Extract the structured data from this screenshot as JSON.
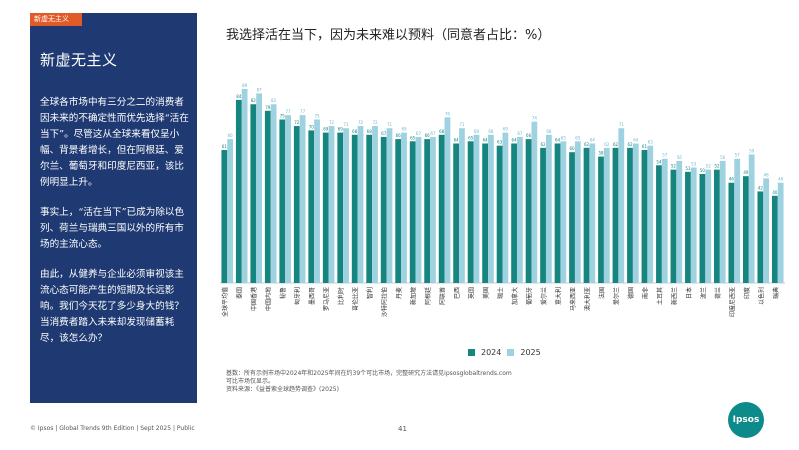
{
  "sidebar": {
    "tag": "新虚无主义",
    "title": "新虚无主义",
    "paragraphs": [
      "全球各市场中有三分之二的消费者因未来的不确定性而优先选择“活在当下”。尽管这从全球来看仅呈小幅、背景者增长，但在阿根廷、爱尔兰、葡萄牙和印度尼西亚，该比例明显上升。",
      "事实上，“活在当下”已成为除以色列、荷兰与瑞典三国以外的所有市场的主流心态。",
      "由此，从健养与企业必须审视该主流心态可能产生的短期及长远影响。我们今天花了多少身大的钱？当消费者踏入未来却发现储蓄耗尽，该怎么办？"
    ]
  },
  "chart_data": {
    "type": "bar",
    "title": "我选择活在当下，因为未来难以预料（同意者占比：%）",
    "categories": [
      "全球平均值",
      "泰国",
      "中国香港",
      "中国内地",
      "秘鲁",
      "匈牙利",
      "墨西哥",
      "罗马尼亚",
      "比利时",
      "哥伦比亚",
      "智利",
      "沙特阿拉伯",
      "丹麦",
      "新加坡",
      "阿根廷",
      "阿联酋",
      "巴西",
      "英国",
      "美国",
      "瑞士",
      "加拿大",
      "葡萄牙",
      "爱尔兰",
      "意大利",
      "马来西亚",
      "澳大利亚",
      "法国",
      "爱尔兰",
      "德国",
      "南非",
      "土耳其",
      "新西兰",
      "日本",
      "波兰",
      "荷兰",
      "印度尼西亚",
      "印度",
      "以色列",
      "瑞典"
    ],
    "series": [
      {
        "name": "2024",
        "color": "#17857f",
        "values": [
          61,
          84,
          82,
          79,
          75,
          72,
          70,
          69,
          69,
          68,
          68,
          67,
          66,
          65,
          66,
          68,
          64,
          65,
          64,
          63,
          64,
          66,
          62,
          64,
          60,
          62,
          58,
          62,
          62,
          61,
          54,
          52,
          51,
          50,
          52,
          46,
          49,
          42,
          40
        ]
      },
      {
        "name": "2025",
        "color": "#9fd2e0",
        "values": [
          66,
          89,
          87,
          82,
          77,
          77,
          75,
          72,
          71,
          72,
          72,
          71,
          69,
          67,
          67,
          76,
          71,
          68,
          68,
          69,
          67,
          74,
          68,
          65,
          65,
          64,
          62,
          71,
          64,
          63,
          57,
          56,
          53,
          52,
          56,
          57,
          59,
          48,
          46
        ]
      }
    ],
    "ylim": [
      0,
      100
    ],
    "legend_position": "bottom-center"
  },
  "notes": {
    "line1": "基数：所有示例市场中2024年和2025年间在约39个可比市场，完整研究方法请见ipsosglobaltrends.com",
    "line2": "可比市场仅显示。",
    "line3": "资料来源：《益普索全球趋势调查》(2025)"
  },
  "footer": {
    "left": "© Ipsos | Global Trends 9th Edition | Sept 2025 | Public",
    "page": "41",
    "logo": "Ipsos"
  }
}
